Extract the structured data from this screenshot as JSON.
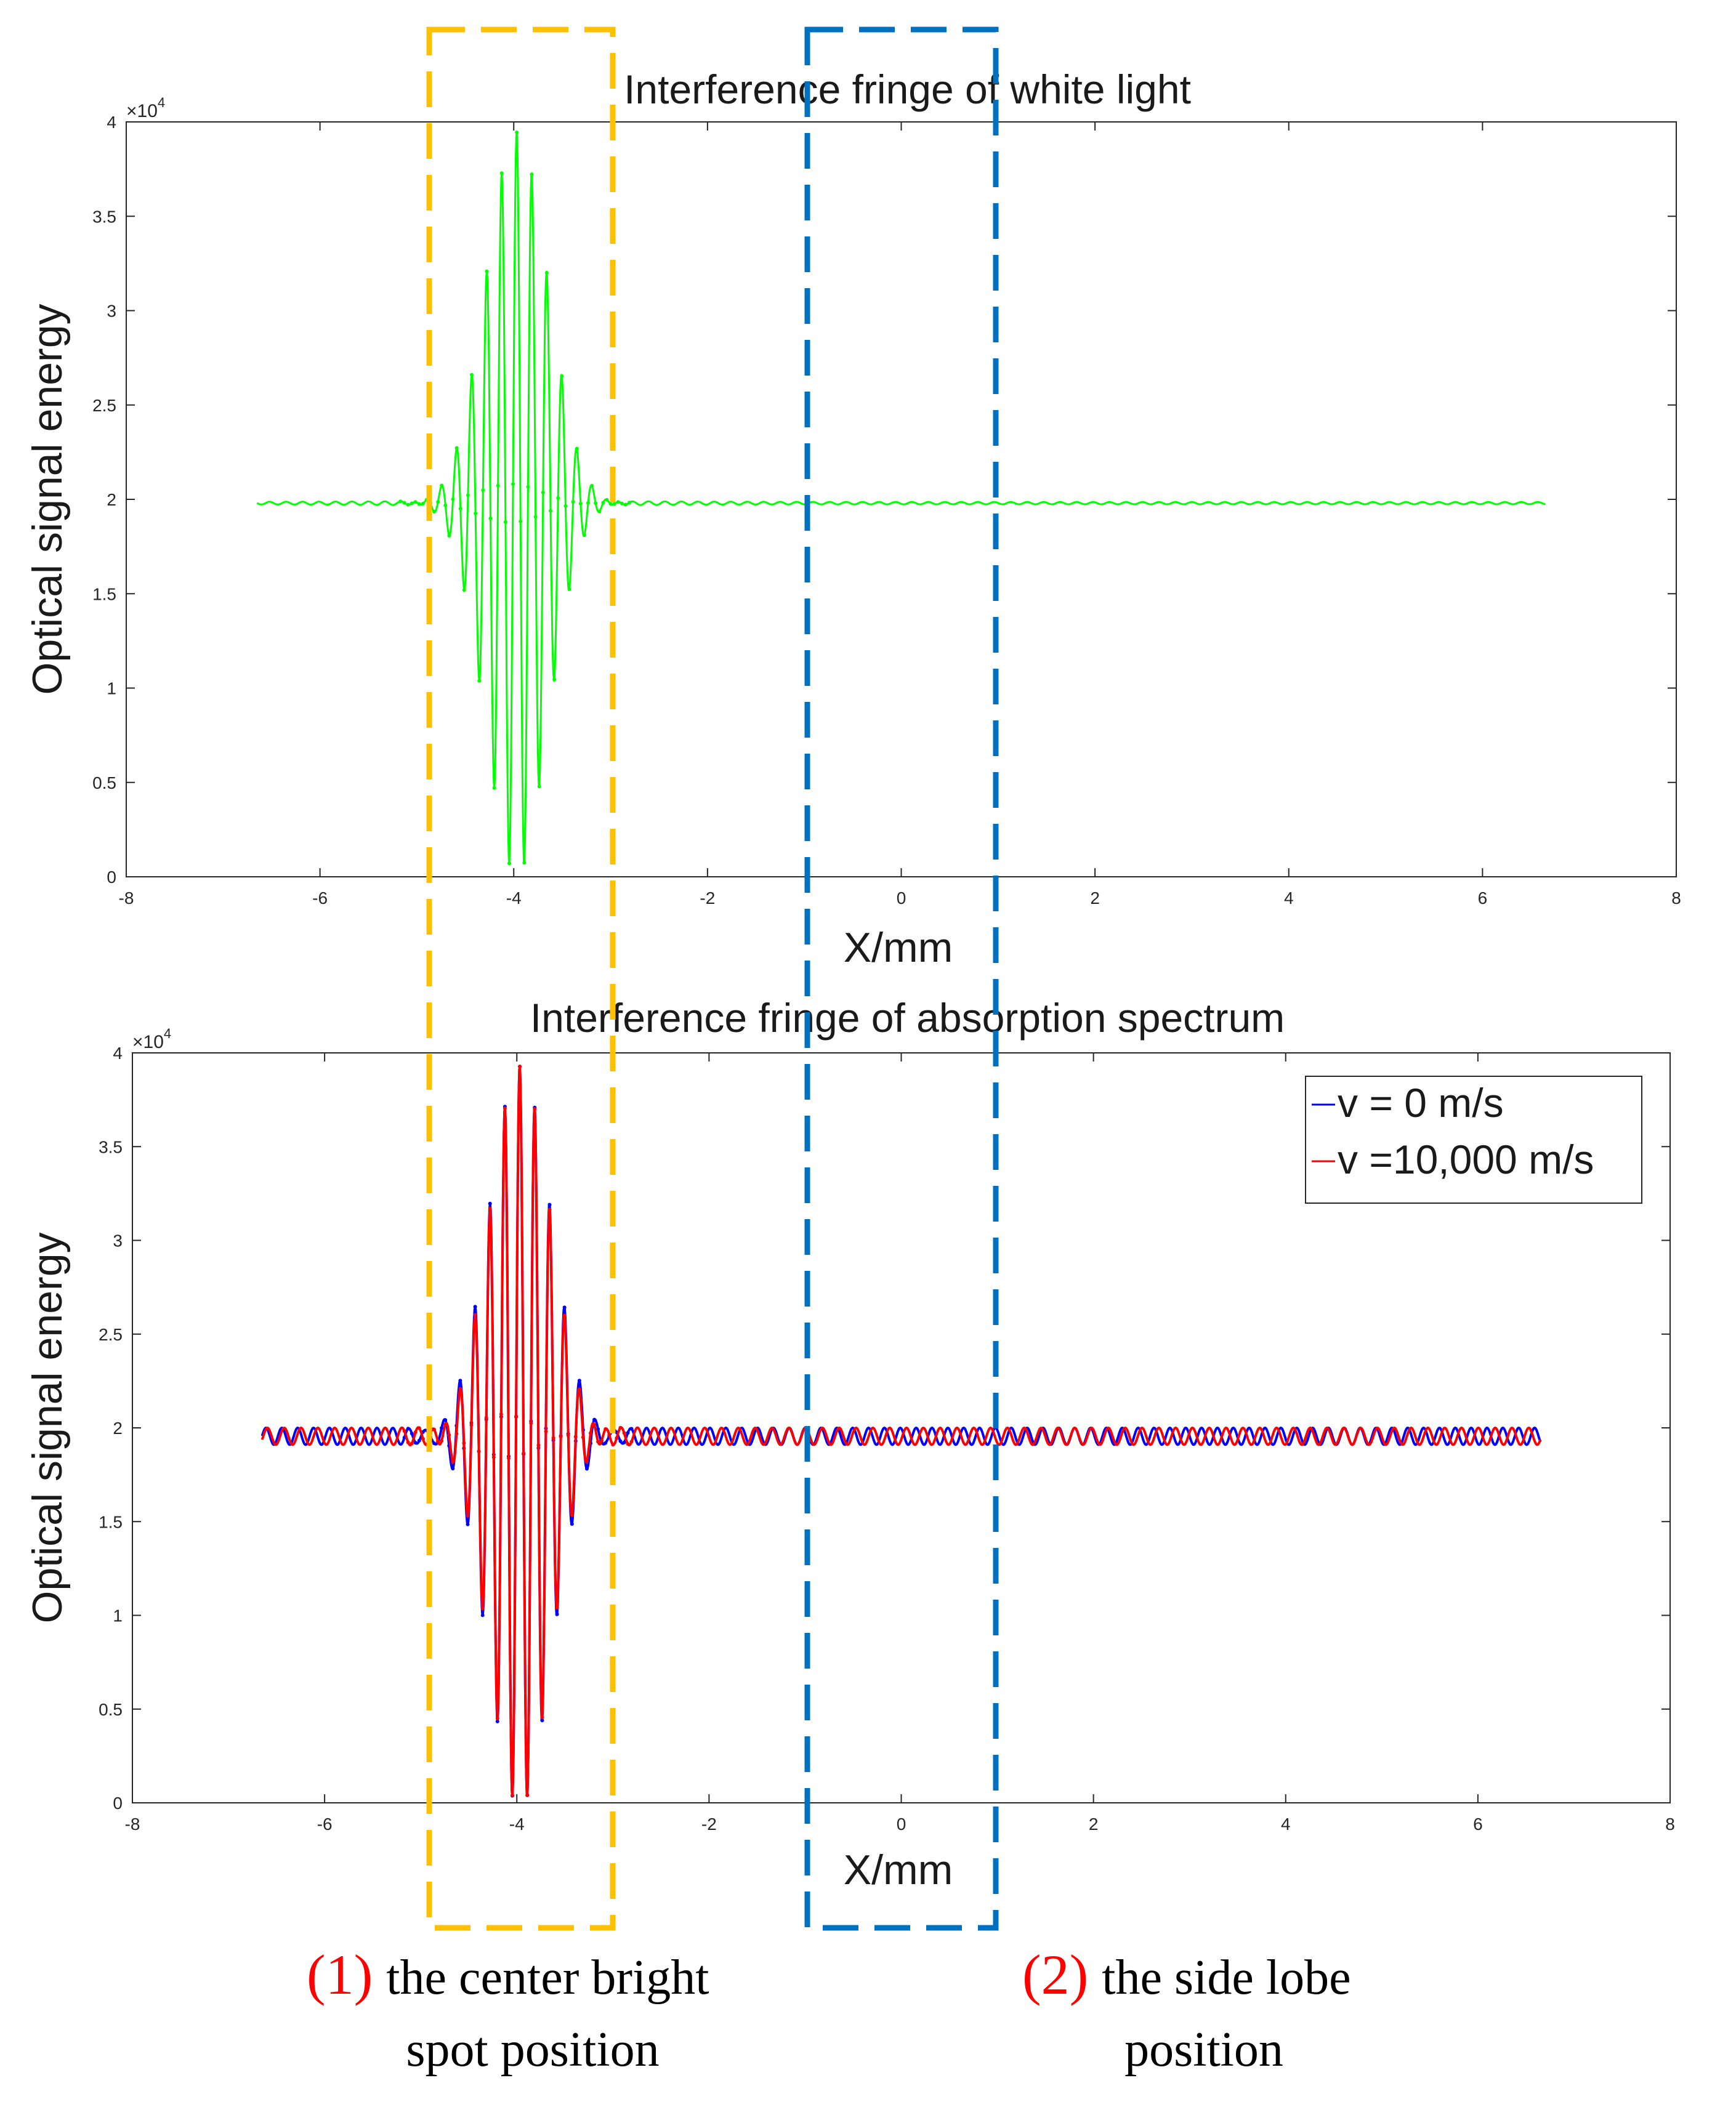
{
  "figure": {
    "annotations": {
      "box1_color": "#ffc000",
      "box2_color": "#0070c0",
      "caption1": {
        "number": "(1)",
        "line1": "the center bright",
        "line2": "spot position"
      },
      "caption2": {
        "number": "(2)",
        "line1": "the side lobe",
        "line2": "position"
      }
    }
  },
  "chart_data": [
    {
      "type": "line",
      "title": "Interference fringe of white light",
      "xlabel": "X/mm",
      "ylabel": "Optical signal energy",
      "exponent_label": "×10",
      "exponent_power": "4",
      "xlim": [
        -8,
        8
      ],
      "ylim": [
        0,
        4
      ],
      "y_scale": 10000,
      "xticks": [
        -8,
        -6,
        -4,
        -2,
        0,
        2,
        4,
        6,
        8
      ],
      "xtick_labels": [
        "-8",
        "-6",
        "-4",
        "-2",
        "0",
        "2",
        "4",
        "6",
        "8"
      ],
      "yticks": [
        0,
        0.5,
        1,
        1.5,
        2,
        2.5,
        3,
        3.5,
        4
      ],
      "ytick_labels": [
        "0",
        "0.5",
        "1",
        "1.5",
        "2",
        "2.5",
        "3",
        "3.5",
        "4"
      ],
      "x_range": [
        -6.65,
        6.65
      ],
      "series": [
        {
          "name": "white light",
          "color": "#00ff00",
          "baseline": 1.98,
          "center": -3.97,
          "period": 0.155,
          "peak_amplitude": 1.95,
          "envelope_width": 0.32,
          "ripple": 0.017,
          "ripple_period": 0.17,
          "ripple_decay": 1.2
        }
      ],
      "legend": null
    },
    {
      "type": "line",
      "title": "Interference fringe of absorption spectrum",
      "xlabel": "X/mm",
      "ylabel": "Optical signal energy",
      "exponent_label": "×10",
      "exponent_power": "4",
      "xlim": [
        -8,
        8
      ],
      "ylim": [
        0,
        4
      ],
      "y_scale": 10000,
      "xticks": [
        -8,
        -6,
        -4,
        -2,
        0,
        2,
        4,
        6,
        8
      ],
      "xtick_labels": [
        "-8",
        "-6",
        "-4",
        "-2",
        "0",
        "2",
        "4",
        "6",
        "8"
      ],
      "yticks": [
        0,
        0.5,
        1,
        1.5,
        2,
        2.5,
        3,
        3.5,
        4
      ],
      "ytick_labels": [
        "0",
        "0.5",
        "1",
        "1.5",
        "2",
        "2.5",
        "3",
        "3.5",
        "4"
      ],
      "x_range": [
        -6.65,
        6.65
      ],
      "series": [
        {
          "name": "v = 0 m/s",
          "color": "#0000ff",
          "baseline": 1.955,
          "center": -3.97,
          "period": 0.155,
          "peak_amplitude": 1.93,
          "envelope_width": 0.32,
          "ripple": 0.045,
          "ripple_period": 0.165,
          "ripple_decay": 0
        },
        {
          "name": "v =10,000 m/s",
          "color": "#ff0000",
          "baseline": 1.955,
          "center": -3.97,
          "period": 0.155,
          "peak_amplitude": 1.93,
          "envelope_width": 0.32,
          "ripple": 0.045,
          "ripple_period": 0.175,
          "ripple_decay": 0
        }
      ],
      "legend": {
        "position": "top-right",
        "entries": [
          "v = 0 m/s",
          "v =10,000 m/s"
        ]
      }
    }
  ]
}
